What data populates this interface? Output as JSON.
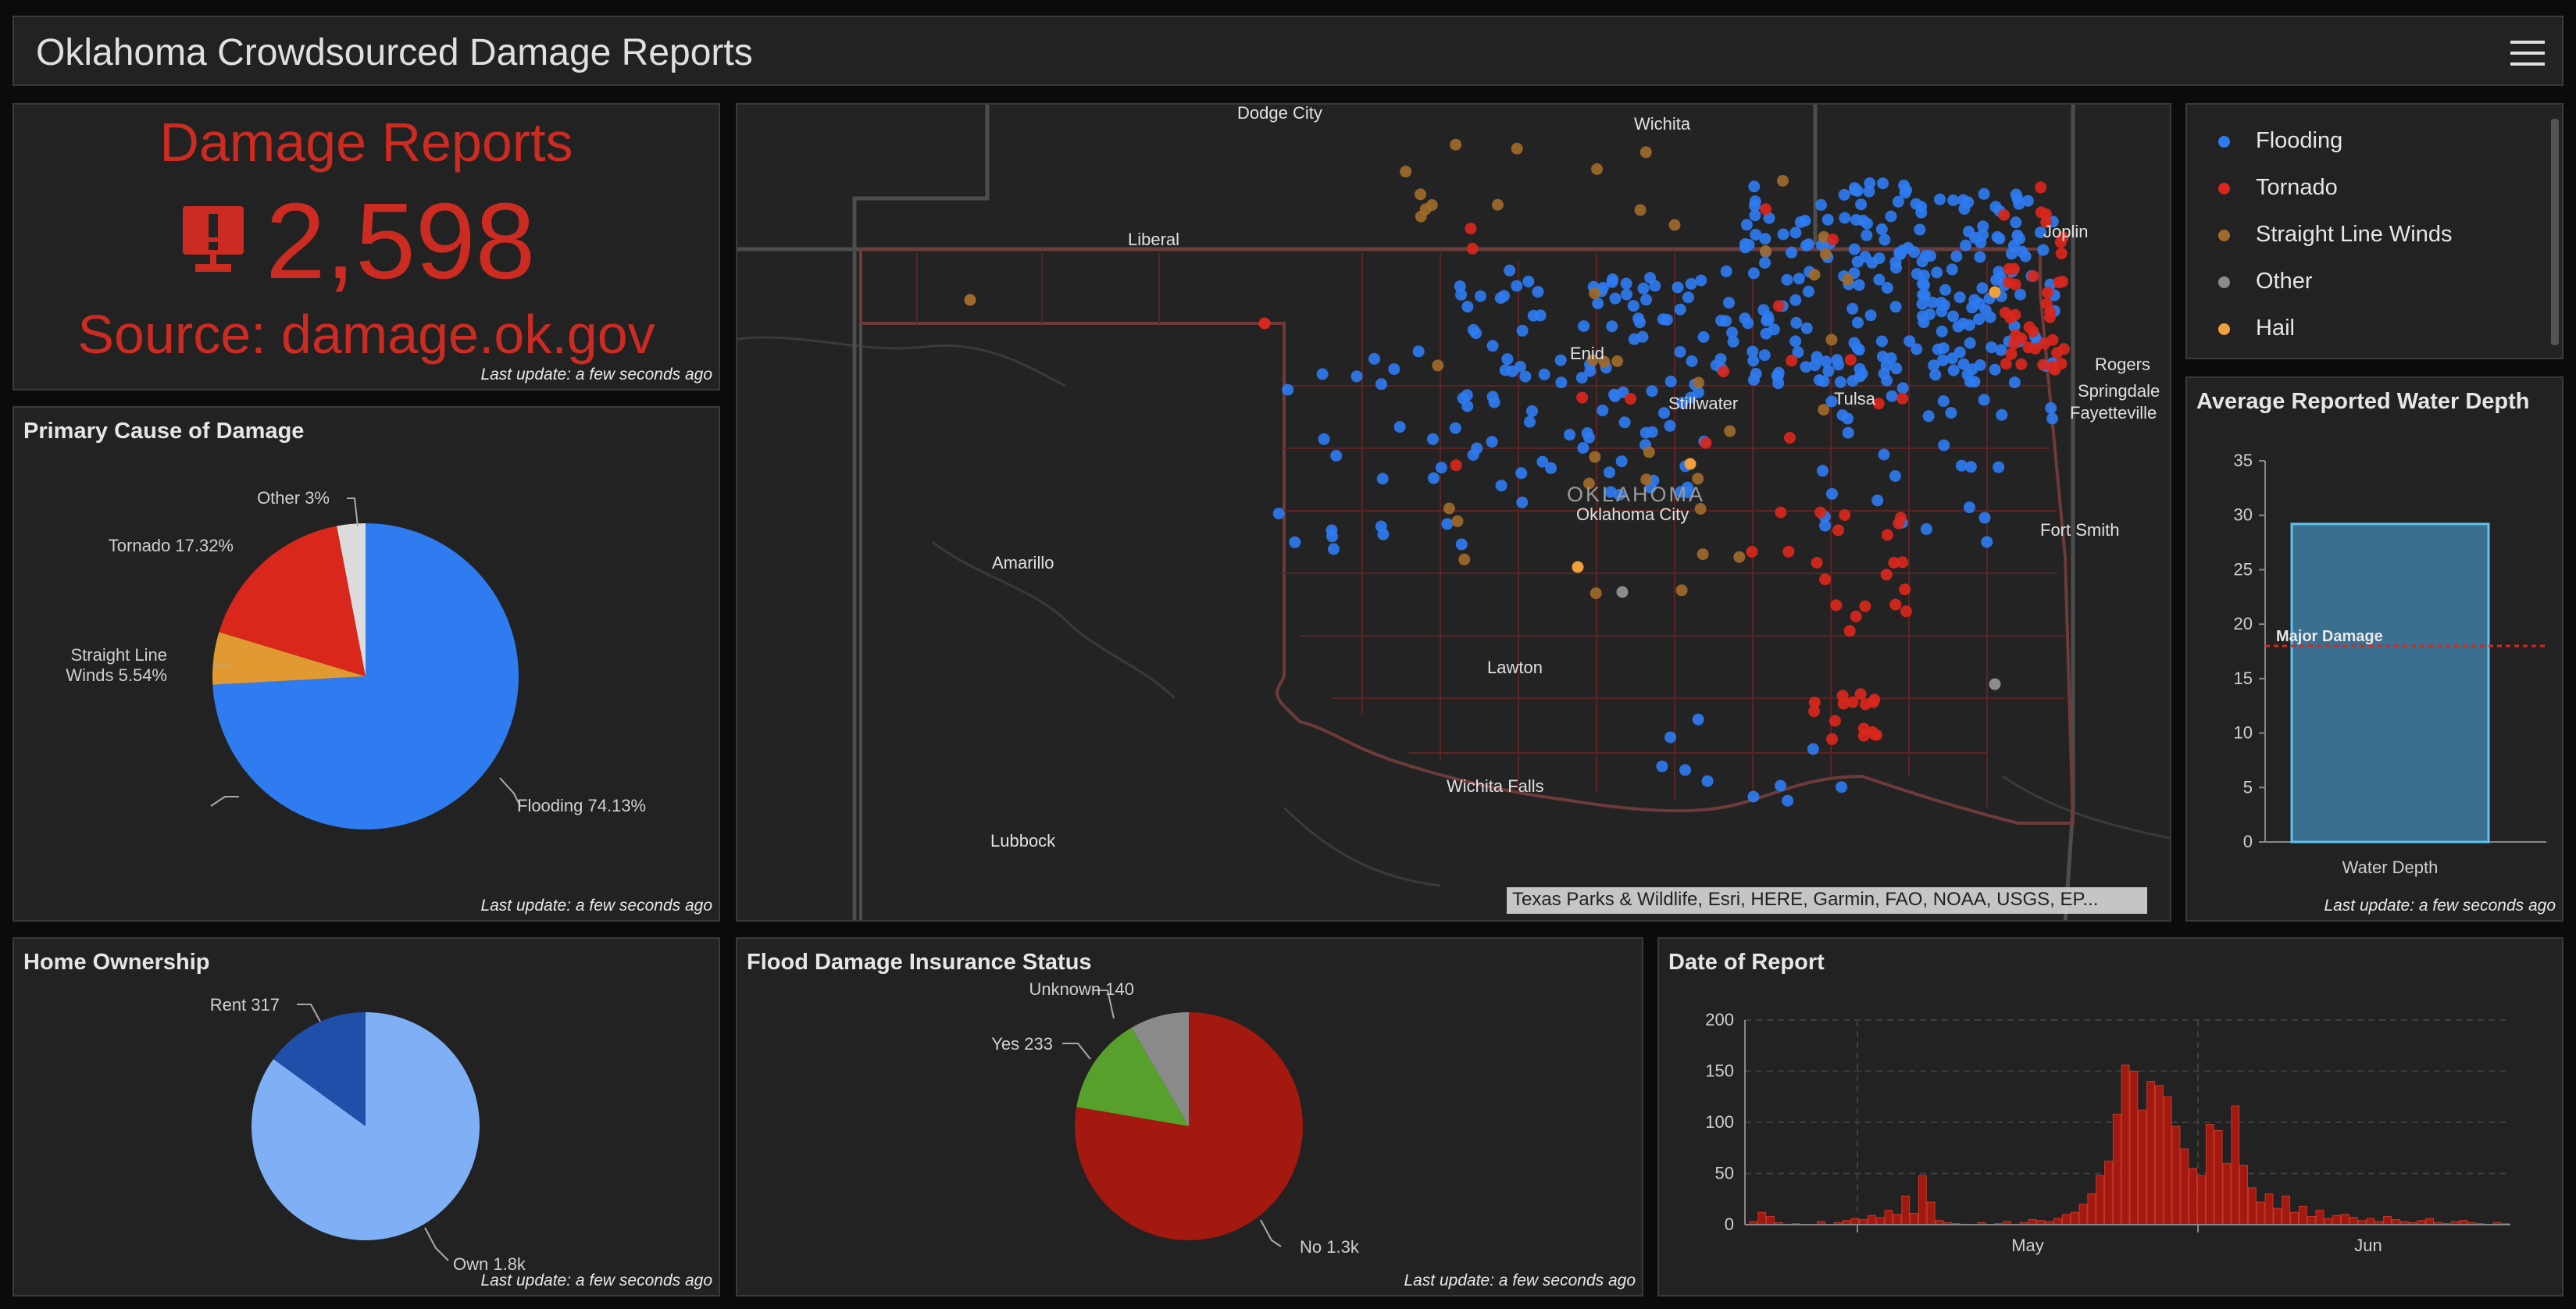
{
  "header": {
    "title": "Oklahoma Crowdsourced Damage Reports",
    "menu_icon": "hamburger-menu-icon"
  },
  "indicator": {
    "title": "Damage Reports",
    "value": "2,598",
    "source": "Source: damage.ok.gov",
    "icon": "damage-report-icon",
    "color": "#cc2b22",
    "last_update": "Last update: a few seconds ago"
  },
  "primary_cause": {
    "title": "Primary Cause of Damage",
    "last_update": "Last update: a few seconds ago",
    "slices": [
      {
        "label": "Flooding 74.13%",
        "value": 74.13,
        "color": "#2f7bf0"
      },
      {
        "label": "Straight Line Winds 5.54%",
        "label_line1": "Straight Line",
        "label_line2": "Winds 5.54%",
        "value": 5.54,
        "color": "#e09a31"
      },
      {
        "label": "Tornado 17.32%",
        "value": 17.32,
        "color": "#d9271c"
      },
      {
        "label": "Other 3%",
        "value": 3.01,
        "color": "#dcdcdc"
      }
    ]
  },
  "map": {
    "attribution": "Texas Parks & Wildlife, Esri, HERE, Garmin, FAO, NOAA, USGS, EP...",
    "state_label": "OKLAHOMA",
    "cities": [
      "Dodge City",
      "Wichita",
      "Liberal",
      "Joplin",
      "Enid",
      "Stillwater",
      "Tulsa",
      "Rogers",
      "Springdale",
      "Fayetteville",
      "Oklahoma City",
      "Amarillo",
      "Fort Smith",
      "Lawton",
      "Wichita Falls",
      "Lubbock"
    ]
  },
  "legend": {
    "items": [
      {
        "label": "Flooding",
        "color": "#2f7bf0"
      },
      {
        "label": "Tornado",
        "color": "#d9271c"
      },
      {
        "label": "Straight Line Winds",
        "color": "#a06a2a"
      },
      {
        "label": "Other",
        "color": "#8c8c8c"
      },
      {
        "label": "Hail",
        "color": "#f0a03c"
      }
    ]
  },
  "water_depth": {
    "title": "Average Reported Water Depth",
    "last_update": "Last update: a few seconds ago",
    "category": "Water Depth",
    "value": 29.2,
    "threshold": 18,
    "threshold_label": "Major Damage",
    "yticks": [
      "35",
      "30",
      "25",
      "20",
      "15",
      "10",
      "5",
      "0"
    ]
  },
  "home_ownership": {
    "title": "Home Ownership",
    "last_update": "Last update: a few seconds ago",
    "slices": [
      {
        "label": "Own 1.8k",
        "value": 1800,
        "color": "#7fb0f5"
      },
      {
        "label": "Rent 317",
        "value": 317,
        "color": "#1f4fa8"
      }
    ]
  },
  "insurance": {
    "title": "Flood Damage Insurance Status",
    "last_update": "Last update: a few seconds ago",
    "slices": [
      {
        "label": "No 1.3k",
        "value": 1300,
        "color": "#a3190f"
      },
      {
        "label": "Yes 233",
        "value": 233,
        "color": "#58a02c"
      },
      {
        "label": "Unknown 140",
        "value": 140,
        "color": "#8a8a8a"
      }
    ]
  },
  "chart_data": [
    {
      "type": "pie",
      "title": "Primary Cause of Damage",
      "labels": [
        "Flooding",
        "Straight Line Winds",
        "Tornado",
        "Other"
      ],
      "values": [
        74.13,
        5.54,
        17.32,
        3.01
      ]
    },
    {
      "type": "pie",
      "title": "Home Ownership",
      "labels": [
        "Own",
        "Rent"
      ],
      "values": [
        1800,
        317
      ]
    },
    {
      "type": "pie",
      "title": "Flood Damage Insurance Status",
      "labels": [
        "No",
        "Yes",
        "Unknown"
      ],
      "values": [
        1300,
        233,
        140
      ]
    },
    {
      "type": "bar",
      "title": "Average Reported Water Depth",
      "categories": [
        "Water Depth"
      ],
      "values": [
        29.2
      ],
      "ylim": [
        0,
        35
      ],
      "annotations": [
        {
          "y": 18,
          "label": "Major Damage"
        }
      ]
    },
    {
      "type": "bar",
      "title": "Date of Report",
      "xlabel": "",
      "ylabel": "",
      "ylim": [
        0,
        200
      ],
      "yticks": [
        "200",
        "150",
        "100",
        "50",
        "0"
      ],
      "xtick_labels": [
        "May",
        "Jun"
      ],
      "values": [
        3,
        12,
        8,
        2,
        0,
        1,
        0,
        0,
        3,
        0,
        2,
        4,
        6,
        5,
        9,
        7,
        14,
        10,
        28,
        11,
        48,
        22,
        4,
        2,
        1,
        0,
        0,
        2,
        0,
        1,
        3,
        0,
        2,
        5,
        4,
        3,
        6,
        10,
        12,
        20,
        30,
        48,
        62,
        108,
        156,
        150,
        112,
        140,
        136,
        125,
        96,
        74,
        55,
        48,
        98,
        92,
        60,
        116,
        58,
        36,
        22,
        30,
        16,
        28,
        12,
        18,
        8,
        14,
        6,
        9,
        10,
        7,
        4,
        6,
        3,
        8,
        5,
        3,
        2,
        4,
        6,
        2,
        1,
        3,
        4,
        2,
        1,
        0,
        2,
        1
      ]
    }
  ],
  "date_report": {
    "title": "Date of Report",
    "month_may": "May",
    "month_jun": "Jun"
  }
}
